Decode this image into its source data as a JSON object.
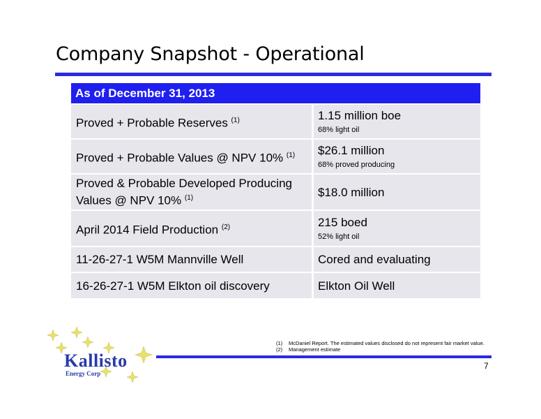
{
  "slide": {
    "title": "Company Snapshot - Operational",
    "page_number": "7"
  },
  "table": {
    "header": "As of December 31, 2013",
    "rows": [
      {
        "label": "Proved + Probable Reserves",
        "note": "(1)",
        "value": "1.15 million boe",
        "subvalue": "68% light oil"
      },
      {
        "label": "Proved + Probable Values @ NPV 10%",
        "note": "(1)",
        "value": "$26.1 million",
        "subvalue": "68% proved producing"
      },
      {
        "label": "Proved & Probable Developed Producing Values @ NPV 10%",
        "note": "(1)",
        "value": "$18.0 million",
        "subvalue": ""
      },
      {
        "label": "April 2014 Field Production",
        "note": "(2)",
        "value": "215 boed",
        "subvalue": "52% light oil"
      },
      {
        "label": "11-26-27-1 W5M Mannville Well",
        "note": "",
        "value": "Cored and evaluating",
        "subvalue": ""
      },
      {
        "label": "16-26-27-1 W5M Elkton oil discovery",
        "note": "",
        "value": "Elkton Oil Well",
        "subvalue": ""
      }
    ]
  },
  "footnotes": [
    {
      "num": "(1)",
      "text": "McDaniel Report. The estimated values disclosed do not represent fair market value."
    },
    {
      "num": "(2)",
      "text": "Management estimate"
    }
  ],
  "logo": {
    "name": "Kallisto",
    "tagline": "Energy Corp",
    "color": "#2a3aa8",
    "star_color": "#e8e070"
  },
  "colors": {
    "accent_blue": "#1f1ff0",
    "rule_blue": "#2a2ae0",
    "row_bg": "#e6e6ec"
  }
}
